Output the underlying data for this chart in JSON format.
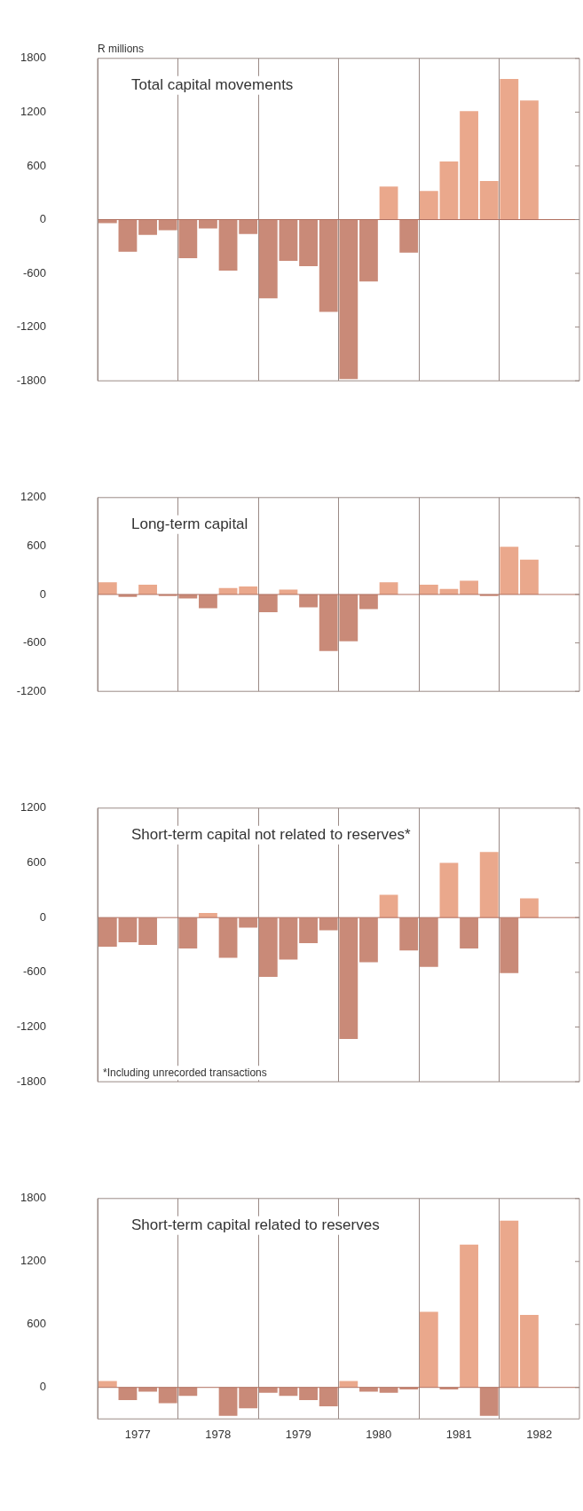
{
  "chart_data": [
    {
      "type": "bar",
      "title": "Total capital movements",
      "ylabel": "R millions",
      "categories": [
        null,
        "1977",
        null,
        null,
        null,
        "1978",
        null,
        null,
        null,
        "1979",
        null,
        null,
        null,
        "1980",
        null,
        null,
        null,
        "1981",
        null,
        null,
        null,
        "1982"
      ],
      "values": [
        -40,
        -360,
        -170,
        -120,
        -430,
        -100,
        -570,
        -160,
        -880,
        -460,
        -520,
        -1030,
        -1780,
        -690,
        370,
        -370,
        320,
        650,
        1210,
        430,
        1570,
        1330
      ],
      "colors": [
        "#c98a78",
        "#c98a78",
        "#c98a78",
        "#c98a78",
        "#c98a78",
        "#c98a78",
        "#c98a78",
        "#c98a78",
        "#c98a78",
        "#c98a78",
        "#c98a78",
        "#c98a78",
        "#c98a78",
        "#c98a78",
        "#eaa88c",
        "#c98a78",
        "#eaa88c",
        "#eaa88c",
        "#eaa88c",
        "#eaa88c",
        "#eaa88c",
        "#eaa88c"
      ],
      "ylim": [
        -1800,
        1800
      ],
      "yticks": [
        -1800,
        -1200,
        -600,
        0,
        600,
        1200,
        1800
      ],
      "grid": "x",
      "tick_labels": "y",
      "ref_lines": [
        {
          "axis": "y",
          "value": 0,
          "color": "#b07060"
        }
      ]
    },
    {
      "type": "bar",
      "title": "Long-term capital",
      "categories": [
        null,
        "1977",
        null,
        null,
        null,
        "1978",
        null,
        null,
        null,
        "1979",
        null,
        null,
        null,
        "1980",
        null,
        null,
        null,
        "1981",
        null,
        null,
        null,
        "1982"
      ],
      "values": [
        150,
        -30,
        120,
        -20,
        -50,
        -170,
        80,
        100,
        -220,
        60,
        -160,
        -700,
        -580,
        -180,
        150,
        0,
        120,
        70,
        170,
        -20,
        590,
        430
      ],
      "colors": [
        "#eaa88c",
        "#c98a78",
        "#eaa88c",
        "#c98a78",
        "#c98a78",
        "#c98a78",
        "#eaa88c",
        "#eaa88c",
        "#c98a78",
        "#eaa88c",
        "#c98a78",
        "#c98a78",
        "#c98a78",
        "#c98a78",
        "#eaa88c",
        "#eaa88c",
        "#eaa88c",
        "#eaa88c",
        "#eaa88c",
        "#c98a78",
        "#eaa88c",
        "#eaa88c"
      ],
      "ylim": [
        -1200,
        1200
      ],
      "yticks": [
        -1200,
        -600,
        0,
        600,
        1200
      ],
      "grid": "x",
      "tick_labels": "y",
      "ref_lines": [
        {
          "axis": "y",
          "value": 0,
          "color": "#b07060"
        }
      ]
    },
    {
      "type": "bar",
      "title": "Short-term capital not related to reserves*",
      "annotations": [
        "*Including unrecorded transactions"
      ],
      "categories": [
        null,
        "1977",
        null,
        null,
        null,
        "1978",
        null,
        null,
        null,
        "1979",
        null,
        null,
        null,
        "1980",
        null,
        null,
        null,
        "1981",
        null,
        null,
        null,
        "1982"
      ],
      "values": [
        -320,
        -270,
        -300,
        0,
        -340,
        50,
        -440,
        -110,
        -650,
        -460,
        -280,
        -140,
        -1330,
        -490,
        250,
        -360,
        -540,
        600,
        -340,
        720,
        -610,
        210
      ],
      "colors": [
        "#c98a78",
        "#c98a78",
        "#c98a78",
        "#c98a78",
        "#c98a78",
        "#eaa88c",
        "#c98a78",
        "#c98a78",
        "#c98a78",
        "#c98a78",
        "#c98a78",
        "#c98a78",
        "#c98a78",
        "#c98a78",
        "#eaa88c",
        "#c98a78",
        "#c98a78",
        "#eaa88c",
        "#c98a78",
        "#eaa88c",
        "#c98a78",
        "#eaa88c"
      ],
      "ylim": [
        -1800,
        1200
      ],
      "yticks": [
        -1800,
        -1200,
        -600,
        0,
        600,
        1200
      ],
      "grid": "x",
      "tick_labels": "y",
      "ref_lines": [
        {
          "axis": "y",
          "value": 0,
          "color": "#b07060"
        }
      ]
    },
    {
      "type": "bar",
      "title": "Short-term capital related to reserves",
      "categories": [
        null,
        "1977",
        null,
        null,
        null,
        "1978",
        null,
        null,
        null,
        "1979",
        null,
        null,
        null,
        "1980",
        null,
        null,
        null,
        "1981",
        null,
        null,
        null,
        "1982"
      ],
      "values": [
        60,
        -120,
        -40,
        -150,
        -80,
        null,
        -270,
        -200,
        -50,
        -80,
        -120,
        -180,
        60,
        -40,
        -50,
        -20,
        720,
        -20,
        1360,
        -270,
        1590,
        690
      ],
      "colors": [
        "#eaa88c",
        "#c98a78",
        "#c98a78",
        "#c98a78",
        "#c98a78",
        "#c98a78",
        "#c98a78",
        "#c98a78",
        "#c98a78",
        "#c98a78",
        "#c98a78",
        "#c98a78",
        "#eaa88c",
        "#c98a78",
        "#c98a78",
        "#c98a78",
        "#eaa88c",
        "#c98a78",
        "#eaa88c",
        "#c98a78",
        "#eaa88c",
        "#eaa88c"
      ],
      "ylim": [
        -300,
        1800
      ],
      "yticks": [
        0,
        600,
        1200,
        1800
      ],
      "grid": "x",
      "ref_lines": [
        {
          "axis": "y",
          "value": 0,
          "color": "#b07060"
        }
      ]
    }
  ]
}
